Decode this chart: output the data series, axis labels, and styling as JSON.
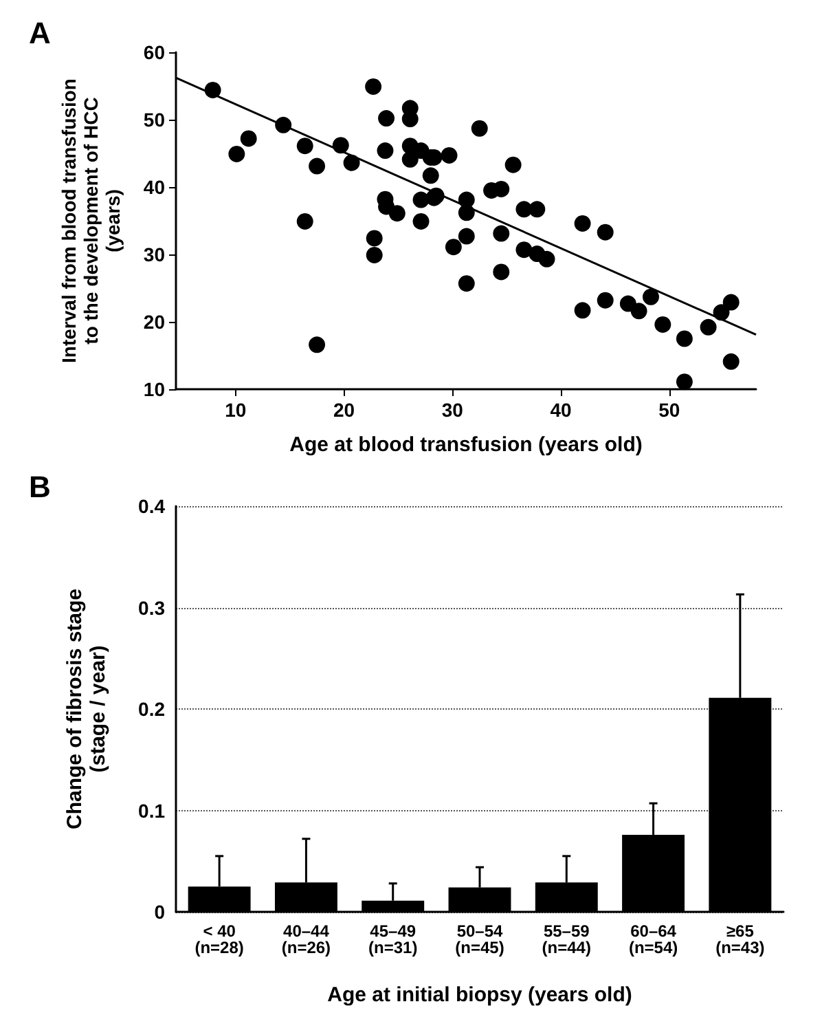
{
  "chart_data": [
    {
      "type": "scatter",
      "title": "A",
      "xlabel": "Age at blood transfusion (years old)",
      "ylabel": "Interval from blood transfusion\nto the development of HCC\n(years)",
      "xlim": [
        4.5,
        58
      ],
      "ylim": [
        10,
        60
      ],
      "xticks": [
        10,
        20,
        30,
        40,
        50
      ],
      "yticks": [
        10,
        20,
        30,
        40,
        50,
        60
      ],
      "grid": false,
      "series": [
        {
          "type": "scatter",
          "marker": "circle",
          "color": "#000000",
          "x": [
            7.9,
            10.1,
            11.2,
            14.4,
            16.4,
            17.5,
            16.4,
            17.5,
            19.7,
            20.7,
            22.7,
            23.9,
            23.8,
            22.8,
            22.8,
            23.8,
            23.9,
            24.9,
            26.1,
            26.1,
            26.1,
            26.1,
            27.1,
            27.1,
            27.1,
            28.0,
            28.0,
            28.5,
            32.5,
            29.7,
            28.3,
            35.6,
            33.6,
            34.5,
            31.3,
            31.3,
            28.3,
            36.6,
            37.8,
            34.5,
            31.3,
            30.1,
            36.6,
            37.8,
            38.7,
            34.5,
            31.3,
            42.0,
            44.1,
            42.0,
            44.1,
            46.2,
            47.2,
            48.3,
            49.4,
            51.4,
            51.4,
            53.6,
            54.8,
            55.7,
            55.7
          ],
          "values": [
            54.4,
            44.9,
            47.2,
            49.2,
            46.1,
            43.1,
            34.9,
            16.6,
            46.2,
            43.6,
            54.9,
            50.2,
            45.4,
            32.4,
            29.9,
            38.2,
            37.1,
            36.1,
            51.7,
            50.1,
            46.1,
            44.1,
            45.4,
            38.1,
            34.9,
            44.4,
            41.7,
            38.7,
            48.7,
            44.7,
            44.4,
            43.3,
            39.5,
            39.7,
            38.1,
            36.2,
            38.4,
            36.7,
            36.7,
            33.1,
            32.7,
            31.1,
            30.7,
            30.1,
            29.3,
            27.4,
            25.7,
            34.6,
            33.3,
            21.7,
            23.2,
            22.7,
            21.6,
            23.7,
            19.6,
            17.5,
            11.1,
            19.2,
            21.4,
            22.9,
            14.1
          ]
        },
        {
          "type": "line",
          "marker": "none",
          "color": "#000000",
          "x": [
            4.5,
            58
          ],
          "values": [
            56.2,
            18.1
          ]
        }
      ]
    },
    {
      "type": "bar",
      "title": "B",
      "xlabel": "Age at initial biopsy (years old)",
      "ylabel": "Change of fibrosis stage\n(stage / year)",
      "categories": [
        "< 40\n(n=28)",
        "40–44\n(n=26)",
        "45–49\n(n=31)",
        "50–54\n(n=45)",
        "55–59\n(n=44)",
        "60–64\n(n=54)",
        "≥65\n(n=43)"
      ],
      "ylim": [
        0,
        0.4
      ],
      "yticks": [
        0,
        0.1,
        0.2,
        0.3,
        0.4
      ],
      "grid": "y",
      "series": [
        {
          "color": "#000000",
          "values": [
            0.025,
            0.029,
            0.011,
            0.024,
            0.029,
            0.076,
            0.211
          ],
          "errors": [
            [
              0.025,
              0.055
            ],
            [
              0.029,
              0.072
            ],
            [
              0.011,
              0.028
            ],
            [
              0.024,
              0.044
            ],
            [
              0.029,
              0.055
            ],
            [
              0.076,
              0.107
            ],
            [
              0.211,
              0.313
            ]
          ]
        }
      ]
    }
  ]
}
